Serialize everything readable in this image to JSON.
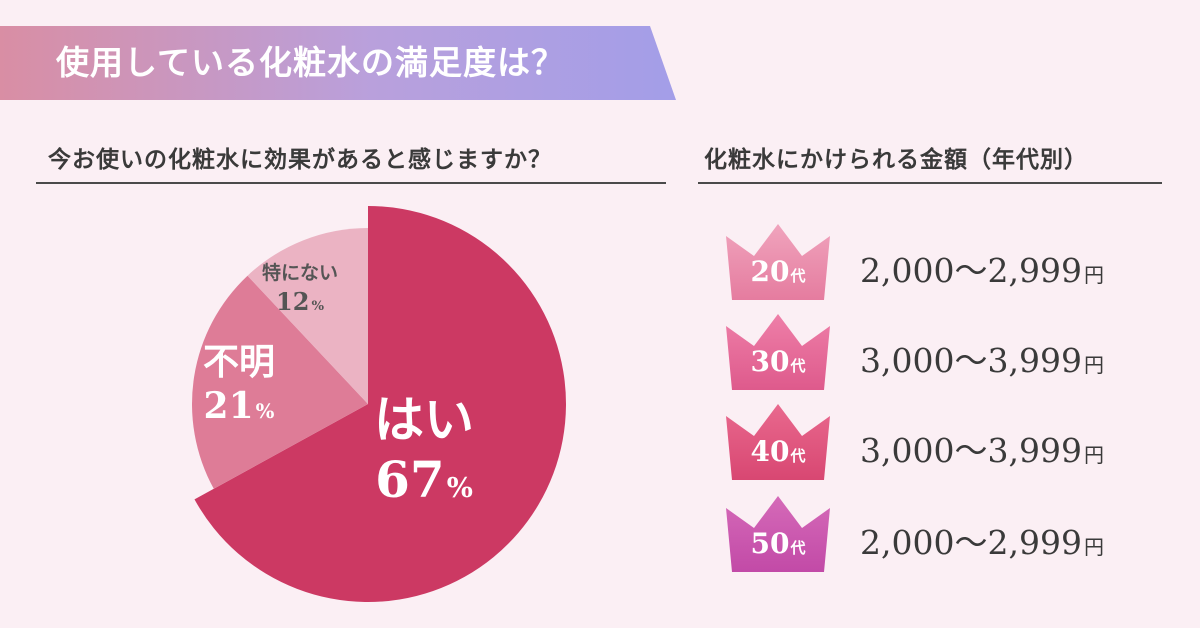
{
  "header": {
    "title": "使用している化粧水の満足度は？"
  },
  "chart_data": [
    {
      "type": "pie",
      "title": "今お使いの化粧水に効果があると感じますか？",
      "percent_unit": "%",
      "slices": [
        {
          "label": "はい",
          "value": 67,
          "color": "#cc3963"
        },
        {
          "label": "不明",
          "value": 21,
          "color": "#de7c97"
        },
        {
          "label": "特にない",
          "value": 12,
          "color": "#ebb3c3"
        }
      ]
    },
    {
      "type": "table",
      "title": "化粧水にかけられる金額（年代別）",
      "age_unit": "代",
      "currency_unit": "円",
      "rows": [
        {
          "age": "20",
          "range": "2,000〜2,999",
          "color_top": "#f0a4bd",
          "color_bottom": "#e57c9f"
        },
        {
          "age": "30",
          "range": "3,000〜3,999",
          "color_top": "#ee7fa8",
          "color_bottom": "#de5a8c"
        },
        {
          "age": "40",
          "range": "3,000〜3,999",
          "color_top": "#e9698e",
          "color_bottom": "#d84772"
        },
        {
          "age": "50",
          "range": "2,000〜2,999",
          "color_top": "#d56ab8",
          "color_bottom": "#c24aa7"
        }
      ]
    }
  ]
}
